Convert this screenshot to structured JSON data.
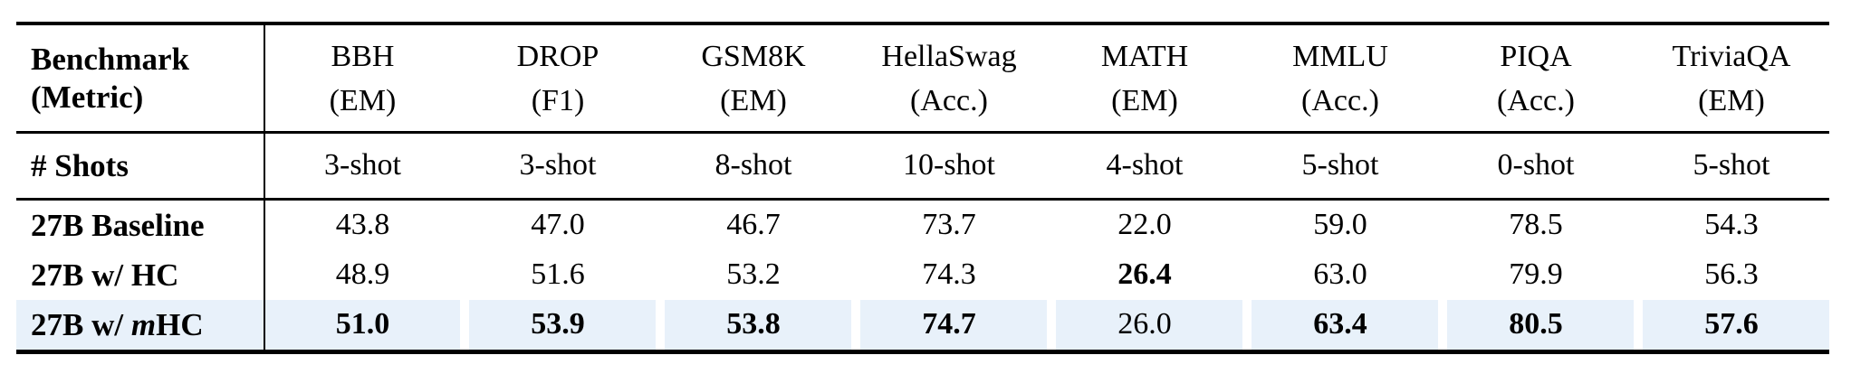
{
  "colors": {
    "highlight": "#e8f1fa",
    "rule": "#000000",
    "text": "#000000",
    "background": "#ffffff"
  },
  "table": {
    "corner": {
      "line1": "Benchmark",
      "line2": "(Metric)"
    },
    "columns": [
      {
        "name": "BBH",
        "metric": "(EM)"
      },
      {
        "name": "DROP",
        "metric": "(F1)"
      },
      {
        "name": "GSM8K",
        "metric": "(EM)"
      },
      {
        "name": "HellaSwag",
        "metric": "(Acc.)"
      },
      {
        "name": "MATH",
        "metric": "(EM)"
      },
      {
        "name": "MMLU",
        "metric": "(Acc.)"
      },
      {
        "name": "PIQA",
        "metric": "(Acc.)"
      },
      {
        "name": "TriviaQA",
        "metric": "(EM)"
      }
    ],
    "shots": {
      "label": "# Shots",
      "values": [
        "3-shot",
        "3-shot",
        "8-shot",
        "10-shot",
        "4-shot",
        "5-shot",
        "0-shot",
        "5-shot"
      ]
    },
    "rows": [
      {
        "label_parts": {
          "pre": "27B Baseline",
          "italic": "",
          "post": ""
        },
        "values": [
          "43.8",
          "47.0",
          "46.7",
          "73.7",
          "22.0",
          "59.0",
          "78.5",
          "54.3"
        ],
        "bold": [
          false,
          false,
          false,
          false,
          false,
          false,
          false,
          false
        ],
        "highlight": false
      },
      {
        "label_parts": {
          "pre": "27B w/ HC",
          "italic": "",
          "post": ""
        },
        "values": [
          "48.9",
          "51.6",
          "53.2",
          "74.3",
          "26.4",
          "63.0",
          "79.9",
          "56.3"
        ],
        "bold": [
          false,
          false,
          false,
          false,
          true,
          false,
          false,
          false
        ],
        "highlight": false
      },
      {
        "label_parts": {
          "pre": "27B w/ ",
          "italic": "m",
          "post": "HC"
        },
        "values": [
          "51.0",
          "53.9",
          "53.8",
          "74.7",
          "26.0",
          "63.4",
          "80.5",
          "57.6"
        ],
        "bold": [
          true,
          true,
          true,
          true,
          false,
          true,
          true,
          true
        ],
        "highlight": true
      }
    ]
  }
}
